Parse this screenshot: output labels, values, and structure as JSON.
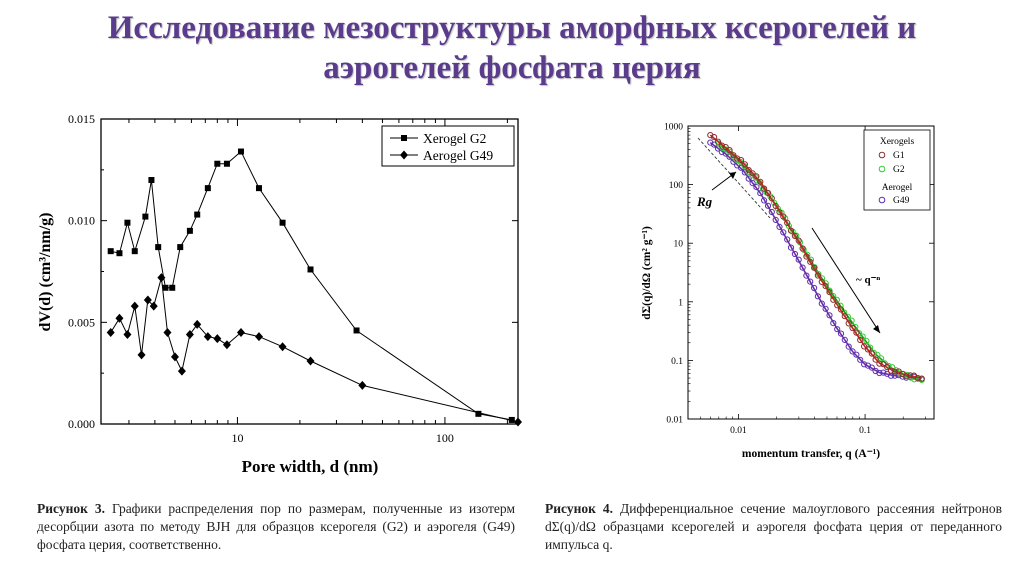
{
  "title": {
    "line1": "Исследование мезоструктуры аморфных ксерогелей и",
    "line2": "аэрогелей фосфата церия"
  },
  "captions": {
    "left": {
      "label": "Рисунок 3.",
      "text": "Графики распределения пор по размерам, полученные из изотерм десорбции азота по методу BJH для образцов ксерогеля (G2) и аэрогеля (G49) фосфата церия, соответственно."
    },
    "right": {
      "label": "Рисунок 4.",
      "text": "Дифференциальное сечение малоуглового рассеяния нейтронов dΣ(q)/dΩ образцами ксерогелей и аэрогеля фосфата церия от переданного импульса q."
    }
  },
  "chart_data": [
    {
      "type": "line",
      "xlabel": "Pore width, d (nm)",
      "ylabel": "dV(d) (cm³/nm/g)",
      "xscale": "log",
      "xlim": [
        2.2,
        225
      ],
      "ylim": [
        0,
        0.015
      ],
      "xticks": [
        10,
        100
      ],
      "xtick_labels": [
        "10",
        "100"
      ],
      "yticks": [
        0,
        0.005,
        0.01,
        0.015
      ],
      "ytick_labels": [
        "0.000",
        "0.005",
        "0.010",
        "0.015"
      ],
      "legend_position": "top-right",
      "series": [
        {
          "name": "Xerogel G2",
          "marker": "square",
          "x": [
            2.45,
            2.7,
            2.95,
            3.2,
            3.6,
            3.85,
            4.15,
            4.5,
            4.85,
            5.3,
            5.9,
            6.4,
            7.2,
            8.0,
            8.9,
            10.4,
            12.7,
            16.5,
            22.5,
            37.5,
            145,
            210
          ],
          "y": [
            0.0085,
            0.0084,
            0.0099,
            0.0085,
            0.0102,
            0.012,
            0.0087,
            0.0067,
            0.0067,
            0.0087,
            0.0095,
            0.0103,
            0.0116,
            0.0128,
            0.0128,
            0.0134,
            0.0116,
            0.0099,
            0.0076,
            0.0046,
            0.0005,
            0.0002
          ]
        },
        {
          "name": "Aerogel G49",
          "marker": "diamond",
          "x": [
            2.45,
            2.7,
            2.95,
            3.2,
            3.45,
            3.7,
            3.95,
            4.3,
            4.6,
            5.0,
            5.4,
            5.9,
            6.4,
            7.2,
            8.0,
            8.9,
            10.4,
            12.7,
            16.5,
            22.5,
            40,
            225
          ],
          "y": [
            0.0045,
            0.0052,
            0.0044,
            0.0058,
            0.0034,
            0.0061,
            0.0058,
            0.0072,
            0.0045,
            0.0033,
            0.0026,
            0.0044,
            0.0049,
            0.0043,
            0.0042,
            0.0039,
            0.0045,
            0.0043,
            0.0038,
            0.0031,
            0.0019,
            0.0001
          ]
        }
      ]
    },
    {
      "type": "scatter",
      "xlabel": "momentum transfer, q (A⁻¹)",
      "ylabel": "dΣ(q)/dΩ (cm² g⁻¹)",
      "xscale": "log",
      "yscale": "log",
      "xlim": [
        0.004,
        0.35
      ],
      "ylim": [
        0.01,
        1000
      ],
      "xtick_labels": [
        "0.01",
        "0.1"
      ],
      "ytick_labels": [
        "0.01",
        "0.1",
        "1",
        "10",
        "100",
        "1000"
      ],
      "legend_position": "top-right",
      "legend_groups": [
        "Xerogels",
        "Aerogel"
      ],
      "annotations": [
        "Rg",
        "~ q⁻ⁿ"
      ],
      "series": [
        {
          "name": "G1",
          "group": "Xerogels",
          "color": "#8b2f2f",
          "x": [
            0.006,
            0.008,
            0.011,
            0.015,
            0.02,
            0.03,
            0.04,
            0.06,
            0.08,
            0.1,
            0.13,
            0.17,
            0.22,
            0.28
          ],
          "y": [
            700,
            420,
            230,
            110,
            42,
            10.5,
            3.5,
            0.9,
            0.35,
            0.17,
            0.09,
            0.065,
            0.055,
            0.05
          ]
        },
        {
          "name": "G2",
          "group": "Xerogels",
          "color": "#33cc33",
          "x": [
            0.007,
            0.01,
            0.014,
            0.02,
            0.03,
            0.045,
            0.065,
            0.09,
            0.12,
            0.16,
            0.21,
            0.28
          ],
          "y": [
            500,
            260,
            120,
            44,
            11,
            2.6,
            0.8,
            0.3,
            0.13,
            0.075,
            0.055,
            0.045
          ]
        },
        {
          "name": "G49",
          "group": "Aerogel",
          "color": "#5a2fb5",
          "x": [
            0.006,
            0.008,
            0.011,
            0.015,
            0.02,
            0.03,
            0.045,
            0.06,
            0.08,
            0.1,
            0.13,
            0.17,
            0.22,
            0.28
          ],
          "y": [
            520,
            330,
            170,
            70,
            24,
            5,
            1.0,
            0.35,
            0.14,
            0.085,
            0.062,
            0.055,
            0.052,
            0.05
          ]
        }
      ]
    }
  ]
}
